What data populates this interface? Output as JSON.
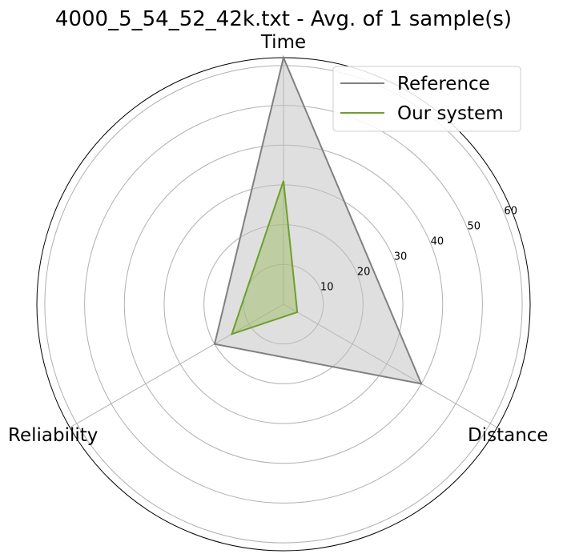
{
  "chart_data": {
    "type": "radar",
    "title": "4000_5_54_52_42k.txt - Avg. of 1 sample(s)",
    "axes": [
      "Time",
      "Distance",
      "Reliability"
    ],
    "r_ticks": [
      10,
      20,
      30,
      40,
      50,
      60
    ],
    "r_max": 62,
    "grid": true,
    "legend_position": "top-right",
    "series": [
      {
        "name": "Reference",
        "values": [
          62,
          40,
          20
        ],
        "color": "#808080",
        "fill": "#bfbfbf"
      },
      {
        "name": "Our system",
        "values": [
          31,
          4,
          15
        ],
        "color": "#6e9e2f",
        "fill": "#9dbb66"
      }
    ]
  }
}
